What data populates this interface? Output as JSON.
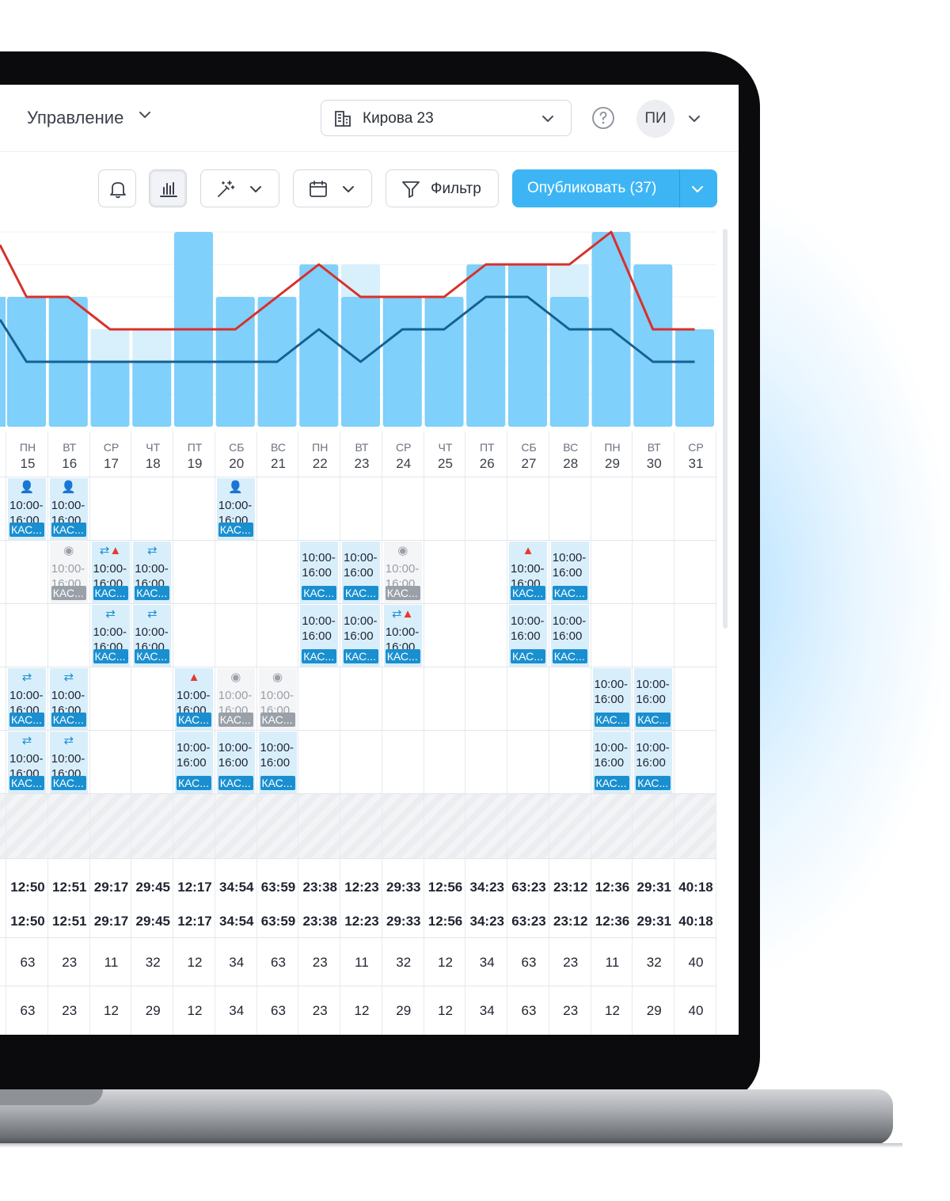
{
  "header": {
    "menu_label": "Управление",
    "location": "Кирова 23",
    "avatar_initials": "ПИ"
  },
  "toolbar": {
    "filter_label": "Фильтр",
    "publish_label": "Опубликовать (37)"
  },
  "colors": {
    "accent": "#3db5f4",
    "bar_fill": "#7fd0fa",
    "bar_light": "#d8effc",
    "line_red": "#d9302a",
    "line_blue": "#165f94",
    "shift_tag": "#1a8fd0"
  },
  "days": [
    {
      "dw": "ПН",
      "dn": "15"
    },
    {
      "dw": "ВТ",
      "dn": "16"
    },
    {
      "dw": "СР",
      "dn": "17"
    },
    {
      "dw": "ЧТ",
      "dn": "18"
    },
    {
      "dw": "ПТ",
      "dn": "19"
    },
    {
      "dw": "СБ",
      "dn": "20"
    },
    {
      "dw": "ВС",
      "dn": "21"
    },
    {
      "dw": "ПН",
      "dn": "22"
    },
    {
      "dw": "ВТ",
      "dn": "23"
    },
    {
      "dw": "СР",
      "dn": "24"
    },
    {
      "dw": "ЧТ",
      "dn": "25"
    },
    {
      "dw": "ПТ",
      "dn": "26"
    },
    {
      "dw": "СБ",
      "dn": "27"
    },
    {
      "dw": "ВС",
      "dn": "28"
    },
    {
      "dw": "ПН",
      "dn": "29"
    },
    {
      "dw": "ВТ",
      "dn": "30"
    },
    {
      "dw": "СР",
      "dn": "31"
    }
  ],
  "shift_time_start": "10:00-",
  "shift_time_end": "16:00",
  "shift_tag": "КАС...",
  "shift_rows": [
    {
      "0": {
        "icons": [
          "user"
        ]
      },
      "1": {
        "icons": [
          "user"
        ]
      },
      "5": {
        "icons": [
          "user"
        ]
      }
    },
    {
      "1": {
        "icons": [
          "wait"
        ],
        "gray": true
      },
      "2": {
        "icons": [
          "cycle",
          "warn"
        ]
      },
      "3": {
        "icons": [
          "cycle"
        ]
      },
      "7": {
        "icons": []
      },
      "8": {
        "icons": []
      },
      "9": {
        "icons": [
          "wait"
        ],
        "gray": true
      },
      "12": {
        "icons": [
          "warn"
        ]
      },
      "13": {
        "icons": []
      }
    },
    {
      "2": {
        "icons": [
          "cycle"
        ]
      },
      "3": {
        "icons": [
          "cycle"
        ]
      },
      "7": {
        "icons": []
      },
      "8": {
        "icons": []
      },
      "9": {
        "icons": [
          "cycle",
          "warn"
        ]
      },
      "12": {
        "icons": []
      },
      "13": {
        "icons": []
      }
    },
    {
      "0": {
        "icons": [
          "cycle"
        ]
      },
      "1": {
        "icons": [
          "cycle"
        ]
      },
      "4": {
        "icons": [
          "warn"
        ]
      },
      "5": {
        "icons": [
          "wait"
        ],
        "gray": true
      },
      "6": {
        "icons": [
          "wait"
        ],
        "gray": true
      },
      "14": {
        "icons": []
      },
      "15": {
        "icons": []
      }
    },
    {
      "0": {
        "icons": [
          "cycle"
        ]
      },
      "1": {
        "icons": [
          "cycle"
        ]
      },
      "4": {
        "icons": []
      },
      "5": {
        "icons": []
      },
      "6": {
        "icons": []
      },
      "14": {
        "icons": []
      },
      "15": {
        "icons": []
      }
    }
  ],
  "totals_row1": [
    "12:50",
    "12:51",
    "29:17",
    "29:45",
    "12:17",
    "34:54",
    "63:59",
    "23:38",
    "12:23",
    "29:33",
    "12:56",
    "34:23",
    "63:23",
    "23:12",
    "12:36",
    "29:31",
    "40:18"
  ],
  "totals_row2": [
    "12:50",
    "12:51",
    "29:17",
    "29:45",
    "12:17",
    "34:54",
    "63:59",
    "23:38",
    "12:23",
    "29:33",
    "12:56",
    "34:23",
    "63:23",
    "23:12",
    "12:36",
    "29:31",
    "40:18"
  ],
  "counts_row1": [
    "63",
    "23",
    "11",
    "32",
    "12",
    "34",
    "63",
    "23",
    "11",
    "32",
    "12",
    "34",
    "63",
    "23",
    "11",
    "32",
    "40"
  ],
  "counts_row2": [
    "63",
    "23",
    "12",
    "29",
    "12",
    "34",
    "63",
    "23",
    "12",
    "29",
    "12",
    "34",
    "63",
    "23",
    "12",
    "29",
    "40"
  ],
  "chart_data": {
    "type": "bar",
    "categories": [
      "15",
      "16",
      "17",
      "18",
      "19",
      "20",
      "21",
      "22",
      "23",
      "24",
      "25",
      "26",
      "27",
      "28",
      "29",
      "30",
      "31"
    ],
    "ylim": [
      0,
      6
    ],
    "series": [
      {
        "kind": "bar-light",
        "values": [
          4,
          4,
          3,
          3,
          6,
          4,
          4,
          5,
          5,
          4,
          4,
          5,
          5,
          5,
          6,
          5,
          3
        ]
      },
      {
        "kind": "bar",
        "values": [
          4,
          4,
          2,
          2,
          6,
          4,
          4,
          5,
          4,
          4,
          4,
          5,
          5,
          4,
          6,
          5,
          3
        ]
      },
      {
        "kind": "line",
        "color": "red",
        "values": [
          4,
          4,
          3,
          3,
          3,
          3,
          4,
          5,
          4,
          4,
          4,
          5,
          5,
          5,
          6,
          3,
          3
        ]
      },
      {
        "kind": "line",
        "color": "blue",
        "values": [
          2,
          2,
          2,
          2,
          2,
          2,
          2,
          3,
          2,
          3,
          3,
          4,
          4,
          3,
          3,
          2,
          2
        ]
      }
    ]
  }
}
